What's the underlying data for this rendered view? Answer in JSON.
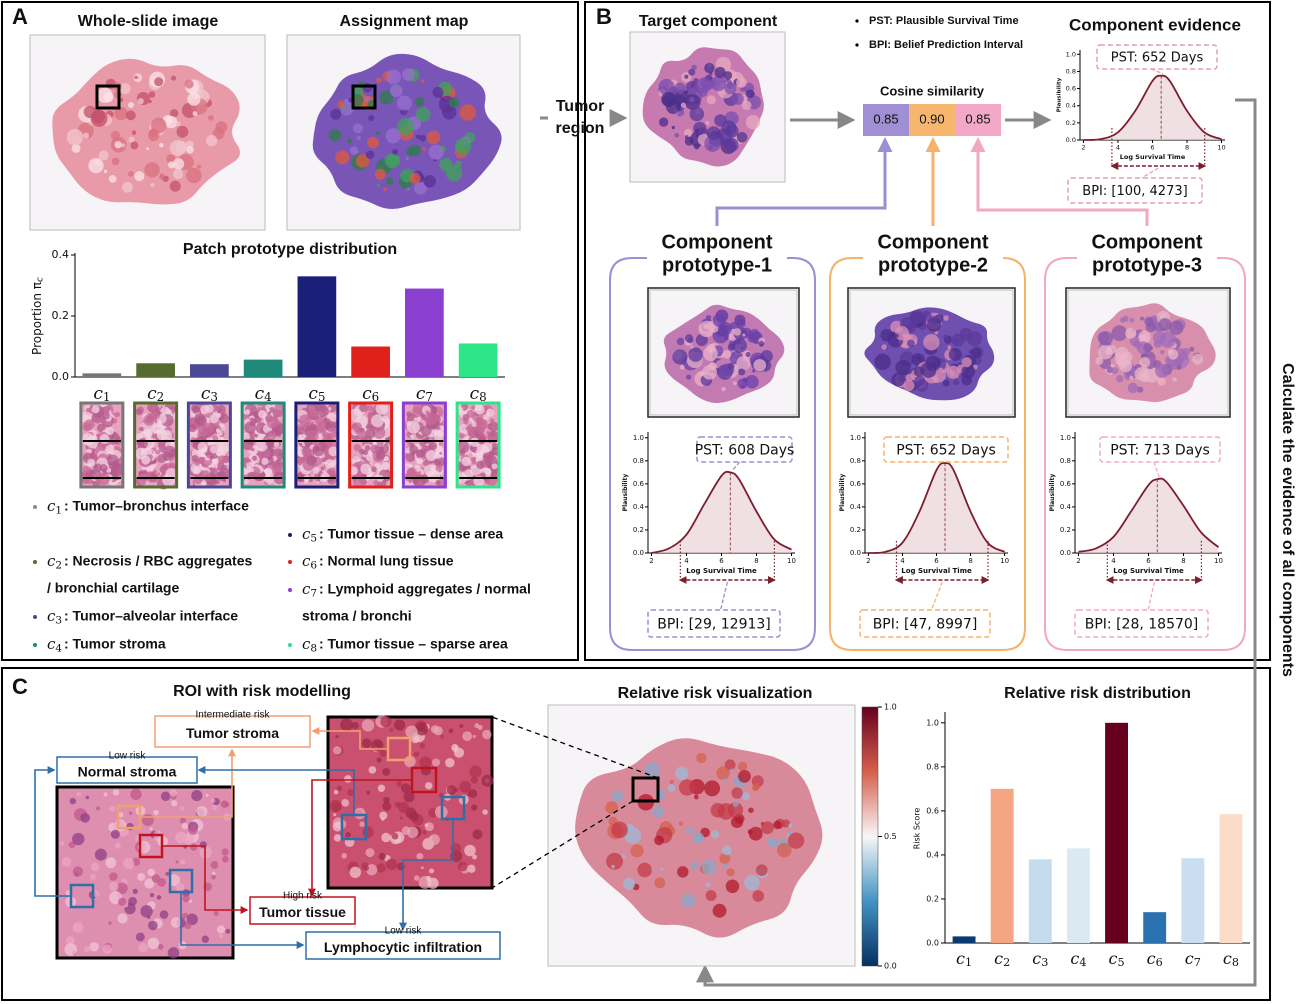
{
  "panel_a": {
    "letter": "A",
    "wsi_title": "Whole-slide image",
    "map_title": "Assignment map",
    "legend": [
      {
        "symbol": "c1",
        "text": ": Tumor–bronchus interface",
        "color": "#8a8a8a"
      },
      {
        "symbol": "c2",
        "text": ": Necrosis / RBC aggregates",
        "continuation": "/ bronchial cartilage",
        "color": "#5a6b35"
      },
      {
        "symbol": "c3",
        "text": ": Tumor–alveolar interface",
        "color": "#4a4690"
      },
      {
        "symbol": "c4",
        "text": ": Tumor stroma",
        "color": "#1e8a78"
      },
      {
        "symbol": "c5",
        "text": ": Tumor tissue – dense area",
        "color": "#1b1f6e"
      },
      {
        "symbol": "c6",
        "text": ": Normal lung tissue",
        "color": "#d9241c"
      },
      {
        "symbol": "c7",
        "text": ": Lymphoid aggregates / normal",
        "continuation": "stroma / bronchi",
        "color": "#8b3fd0"
      },
      {
        "symbol": "c8",
        "text": ": Tumor tissue – sparse area",
        "color": "#2ee088"
      }
    ]
  },
  "arrow_label": [
    "Tumor",
    "region"
  ],
  "panel_b": {
    "letter": "B",
    "target_title": "Target component",
    "notes": [
      "PST: Plausible Survival Time",
      "BPI: Belief Prediction Interval"
    ],
    "cosine_title": "Cosine similarity",
    "cosine": [
      {
        "value": "0.85",
        "color": "#9f8fd4"
      },
      {
        "value": "0.90",
        "color": "#f7b66e"
      },
      {
        "value": "0.85",
        "color": "#f2a8c6"
      }
    ],
    "evidence_title": "Component evidence",
    "prototypes": [
      {
        "title": "Component",
        "subtitle": "prototype-1",
        "color": "#9a8fd2"
      },
      {
        "title": "Component",
        "subtitle": "prototype-2",
        "color": "#f6b26b"
      },
      {
        "title": "Component",
        "subtitle": "prototype-3",
        "color": "#f2a7c3"
      }
    ]
  },
  "panel_c": {
    "letter": "C",
    "roi_title": "ROI with risk modelling",
    "viz_title": "Relative risk visualization",
    "colorbar_ticks": [
      "1.0",
      "0.5",
      "0.0"
    ],
    "labels": [
      {
        "risk": "Intermediate risk",
        "tissue": "Tumor stroma",
        "color": "#f0a070"
      },
      {
        "risk": "Low risk",
        "tissue": "Normal stroma",
        "color": "#2f6fa7"
      },
      {
        "risk": "High risk",
        "tissue": "Tumor tissue",
        "color": "#c0141f"
      },
      {
        "risk": "Low risk",
        "tissue": "Lymphocytic infiltration",
        "color": "#2f6fa7"
      }
    ]
  },
  "side_label": "Calculate the evidence of all components",
  "chart_data": [
    {
      "type": "bar",
      "title": "Patch prototype distribution",
      "y_label": "Proportion πc",
      "categories": [
        "c1",
        "c2",
        "c3",
        "c4",
        "c5",
        "c6",
        "c7",
        "c8"
      ],
      "values": [
        0.012,
        0.045,
        0.042,
        0.057,
        0.33,
        0.1,
        0.29,
        0.11
      ],
      "colors": [
        "#777777",
        "#556b2f",
        "#4b4896",
        "#1f8a7a",
        "#1a1f78",
        "#e0201b",
        "#8a3fd1",
        "#2ee68a"
      ],
      "ylim": [
        0,
        0.4
      ],
      "yticks": [
        {
          "value": 0,
          "label": "0.0"
        },
        0.2,
        0.4
      ]
    },
    {
      "type": "line",
      "x_label": "Log Survival Time",
      "y_label": "Plausibility",
      "x": [
        2,
        3,
        4,
        5,
        6,
        6.5,
        7,
        8,
        9,
        10
      ],
      "series": [
        {
          "color": "#7b1e2e",
          "values": [
            0.0,
            0.01,
            0.09,
            0.34,
            0.69,
            0.75,
            0.69,
            0.34,
            0.09,
            0.01
          ]
        }
      ],
      "xlim": [
        1.8,
        10.2
      ],
      "xticks": [
        2,
        4,
        6,
        8,
        10
      ],
      "ylim": [
        0,
        1.05
      ],
      "yticks": [
        {
          "value": 0,
          "label": "0.0"
        },
        0.2,
        0.4,
        0.6,
        0.8,
        {
          "value": 1,
          "label": "1.0"
        }
      ],
      "annotations": [
        "PST: 652 Days",
        "BPI: [100, 4273]"
      ],
      "annotation_color": "#e3a0b0"
    },
    {
      "type": "line",
      "x_label": "Log Survival Time",
      "y_label": "Plausibility",
      "x": [
        2,
        3,
        4,
        5,
        6,
        6.5,
        7,
        8,
        9,
        10
      ],
      "series": [
        {
          "color": "#7b1e2e",
          "values": [
            0.0,
            0.04,
            0.16,
            0.42,
            0.67,
            0.7,
            0.64,
            0.36,
            0.12,
            0.03
          ]
        }
      ],
      "xlim": [
        1.8,
        10.2
      ],
      "xticks": [
        2,
        4,
        6,
        8,
        10
      ],
      "ylim": [
        0,
        1.05
      ],
      "yticks": [
        {
          "value": 0,
          "label": "0.0"
        },
        0.2,
        0.4,
        0.6,
        0.8,
        {
          "value": 1,
          "label": "1.0"
        }
      ],
      "annotations": [
        "PST: 608 Days",
        "BPI: [29, 12913]"
      ],
      "annotation_color": "#9a8fd2"
    },
    {
      "type": "line",
      "x_label": "Log Survival Time",
      "y_label": "Plausibility",
      "x": [
        2,
        3,
        4,
        5,
        6,
        6.5,
        7,
        8,
        9,
        10
      ],
      "series": [
        {
          "color": "#7b1e2e",
          "values": [
            0.0,
            0.01,
            0.09,
            0.36,
            0.72,
            0.78,
            0.72,
            0.36,
            0.09,
            0.01
          ]
        }
      ],
      "xlim": [
        1.8,
        10.2
      ],
      "xticks": [
        2,
        4,
        6,
        8,
        10
      ],
      "ylim": [
        0,
        1.05
      ],
      "yticks": [
        {
          "value": 0,
          "label": "0.0"
        },
        0.2,
        0.4,
        0.6,
        0.8,
        {
          "value": 1,
          "label": "1.0"
        }
      ],
      "annotations": [
        "PST: 652 Days",
        "BPI: [47, 8997]"
      ],
      "annotation_color": "#f6b26b"
    },
    {
      "type": "line",
      "x_label": "Log Survival Time",
      "y_label": "Plausibility",
      "x": [
        2,
        3,
        4,
        5,
        6,
        6.5,
        7,
        8,
        9,
        10
      ],
      "series": [
        {
          "color": "#7b1e2e",
          "values": [
            0.01,
            0.04,
            0.14,
            0.36,
            0.59,
            0.64,
            0.62,
            0.41,
            0.18,
            0.05
          ]
        }
      ],
      "xlim": [
        1.8,
        10.2
      ],
      "xticks": [
        2,
        4,
        6,
        8,
        10
      ],
      "ylim": [
        0,
        1.05
      ],
      "yticks": [
        {
          "value": 0,
          "label": "0.0"
        },
        0.2,
        0.4,
        0.6,
        0.8,
        {
          "value": 1,
          "label": "1.0"
        }
      ],
      "annotations": [
        "PST: 713 Days",
        "BPI: [28, 18570]"
      ],
      "annotation_color": "#f2a7c3"
    },
    {
      "type": "bar",
      "title": "Relative risk distribution",
      "y_label": "Risk Score",
      "categories": [
        "c1",
        "c2",
        "c3",
        "c4",
        "c5",
        "c6",
        "c7",
        "c8"
      ],
      "values": [
        0.03,
        0.7,
        0.38,
        0.43,
        1.0,
        0.14,
        0.385,
        0.585
      ],
      "colors": [
        "#0a3a70",
        "#f4a582",
        "#c5dcec",
        "#dbe9f3",
        "#67001f",
        "#2a71b0",
        "#c9def0",
        "#fcdcc8"
      ],
      "ylim": [
        0,
        1.04
      ],
      "yticks": [
        {
          "value": 0,
          "label": "0.0"
        },
        0.2,
        0.4,
        0.6,
        0.8,
        {
          "value": 1,
          "label": "1.0"
        }
      ]
    }
  ]
}
